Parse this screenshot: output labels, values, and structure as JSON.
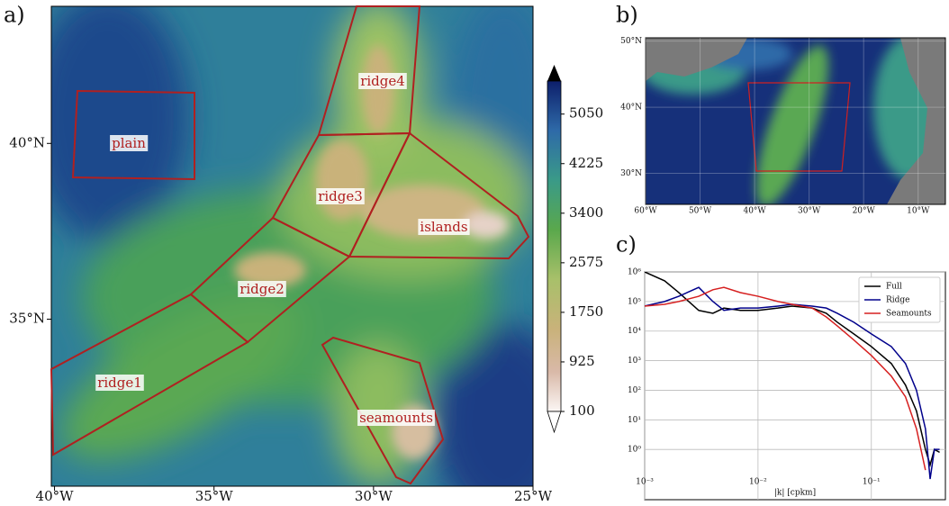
{
  "figure": {
    "panel_labels": [
      "a)",
      "b)",
      "c)"
    ],
    "map_a": {
      "xlim": [
        -40.1,
        -25
      ],
      "ylim": [
        30.25,
        43.9
      ],
      "xticks": [
        {
          "value": -40,
          "label": "40°W"
        },
        {
          "value": -35,
          "label": "35°W"
        },
        {
          "value": -30,
          "label": "30°W"
        },
        {
          "value": -25,
          "label": "25°W"
        }
      ],
      "yticks": [
        {
          "value": 35,
          "label": "35°N"
        },
        {
          "value": 40,
          "label": "40°N"
        }
      ],
      "regions": [
        "plain",
        "ridge4",
        "ridge3",
        "islands",
        "ridge2",
        "ridge1",
        "seamounts"
      ]
    },
    "colorbar": {
      "clim": [
        100,
        5600
      ],
      "ticks": [
        100,
        925,
        1750,
        2575,
        3400,
        4225,
        5050
      ]
    },
    "map_b": {
      "xlim": [
        -60,
        -5
      ],
      "ylim": [
        25.3,
        50.5
      ],
      "xticks": [
        {
          "value": -60,
          "label": "60°W"
        },
        {
          "value": -50,
          "label": "50°W"
        },
        {
          "value": -40,
          "label": "40°W"
        },
        {
          "value": -30,
          "label": "30°W"
        },
        {
          "value": -20,
          "label": "20°W"
        },
        {
          "value": -10,
          "label": "10°W"
        }
      ],
      "yticks": [
        {
          "value": 30,
          "label": "30°N"
        },
        {
          "value": 40,
          "label": "40°N"
        },
        {
          "value": 50,
          "label": "50°N"
        }
      ]
    }
  },
  "chart_data": {
    "type": "line",
    "xlabel": "|k| [cpkm]",
    "log_x": true,
    "log_y": true,
    "grid": true,
    "legend": "upper right",
    "x": [
      0.001,
      0.0015,
      0.002,
      0.003,
      0.004,
      0.005,
      0.007,
      0.01,
      0.015,
      0.02,
      0.03,
      0.04,
      0.05,
      0.07,
      0.1,
      0.15,
      0.2,
      0.25,
      0.3,
      0.33,
      0.36,
      0.4
    ],
    "series": [
      {
        "name": "Full",
        "color": "#000000",
        "values": [
          1000000,
          500000,
          200000,
          50000,
          40000,
          60000,
          50000,
          50000,
          60000,
          70000,
          60000,
          40000,
          20000,
          8000,
          3000,
          800,
          150,
          20,
          1,
          0.3,
          1,
          0.8
        ]
      },
      {
        "name": "Ridge",
        "color": "#00008b",
        "values": [
          70000,
          100000,
          150000,
          300000,
          100000,
          50000,
          60000,
          60000,
          70000,
          80000,
          70000,
          60000,
          40000,
          20000,
          8000,
          3000,
          800,
          100,
          5,
          0.1,
          1,
          1
        ]
      },
      {
        "name": "Seamounts",
        "color": "#d62020",
        "values": [
          70000,
          80000,
          100000,
          150000,
          250000,
          300000,
          200000,
          150000,
          100000,
          80000,
          60000,
          30000,
          15000,
          5000,
          1500,
          300,
          60,
          5,
          0.2,
          null,
          null,
          null
        ]
      }
    ],
    "xlim": [
      0.001,
      0.45
    ],
    "ylim": [
      0.02,
      1000000
    ],
    "xticks": [
      {
        "value": 0.001,
        "label": "10⁻³"
      },
      {
        "value": 0.01,
        "label": "10⁻²"
      },
      {
        "value": 0.1,
        "label": "10⁻¹"
      }
    ],
    "yticks": [
      {
        "value": 1,
        "label": "10⁰"
      },
      {
        "value": 10,
        "label": "10¹"
      },
      {
        "value": 100,
        "label": "10²"
      },
      {
        "value": 1000,
        "label": "10³"
      },
      {
        "value": 10000,
        "label": "10⁴"
      },
      {
        "value": 100000,
        "label": "10⁵"
      },
      {
        "value": 1000000,
        "label": "10⁶"
      }
    ]
  }
}
